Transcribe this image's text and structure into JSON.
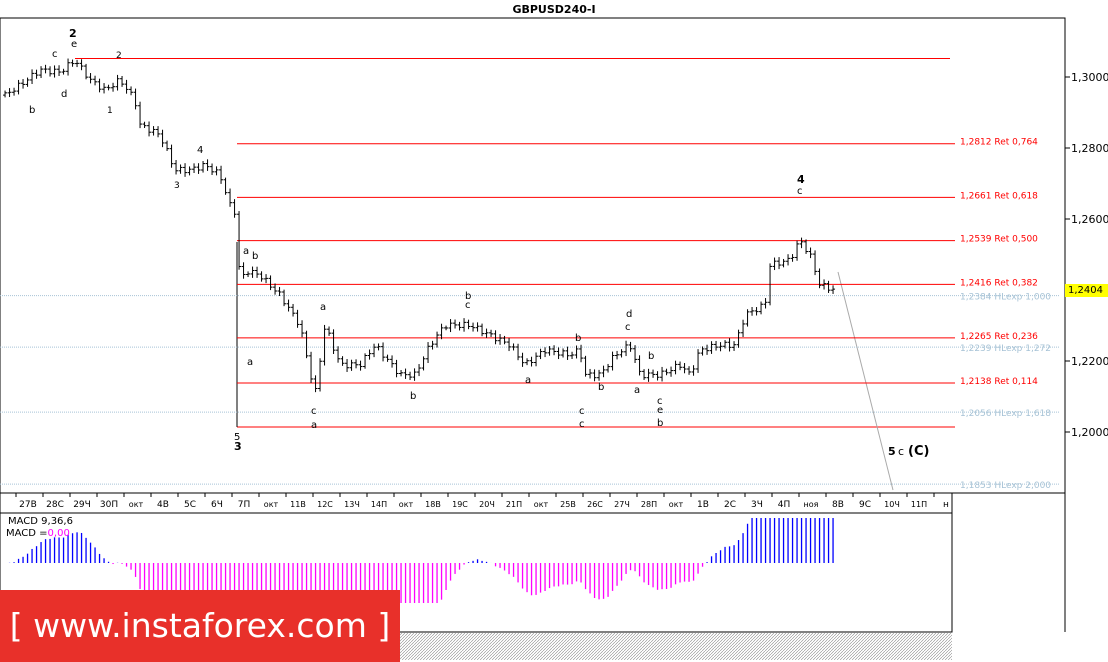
{
  "title": "GBPUSD240-I",
  "current_price": "1,2404",
  "logo_text": "[ www.instaforex.com ]",
  "macd": {
    "label": "MACD 9,36,6",
    "value_prefix": "MACD =",
    "value": "0,00"
  },
  "colors": {
    "ret": "#ff0000",
    "hlexp": "#a7c3d6",
    "current": "#ffff00",
    "macd_pos": "#0000ff",
    "macd_neg": "#ff00ff",
    "logo": "#e8302a"
  },
  "chart_data": {
    "type": "candlestick",
    "title": "GBPUSD240-I",
    "y_ticks": [
      "1,3000",
      "1,2800",
      "1,2600",
      "1,2200",
      "1,2000"
    ],
    "y_tick_values": [
      1.3,
      1.28,
      1.26,
      1.22,
      1.2
    ],
    "ylim": [
      1.1825,
      1.3165
    ],
    "x_ticks": [
      "27В",
      "28С",
      "29Ч",
      "30П",
      "окт",
      "4В",
      "5С",
      "6Ч",
      "7П",
      "окт",
      "11В",
      "12С",
      "13Ч",
      "14П",
      "окт",
      "18В",
      "19С",
      "20Ч",
      "21П",
      "окт",
      "25В",
      "26С",
      "27Ч",
      "28П",
      "окт",
      "1В",
      "2С",
      "3Ч",
      "4П",
      "ноя",
      "8В",
      "9С",
      "10Ч",
      "11П",
      "н"
    ],
    "price_path": [
      [
        -0.85,
        1.2949
      ],
      [
        -0.3,
        1.2977
      ],
      [
        0.44,
        1.302
      ],
      [
        1.19,
        1.3014
      ],
      [
        1.74,
        1.3048
      ],
      [
        2.3,
        1.2992
      ],
      [
        2.85,
        1.2963
      ],
      [
        3.41,
        1.2992
      ],
      [
        3.96,
        1.2935
      ],
      [
        4.15,
        1.2865
      ],
      [
        4.89,
        1.2837
      ],
      [
        5.44,
        1.2738
      ],
      [
        6,
        1.2738
      ],
      [
        6.56,
        1.2752
      ],
      [
        7.11,
        1.2724
      ],
      [
        7.48,
        1.2639
      ],
      [
        7.74,
        1.2611
      ],
      [
        7.85,
        1.24
      ],
      [
        8.04,
        1.2456
      ],
      [
        8.59,
        1.2442
      ],
      [
        9.33,
        1.2386
      ],
      [
        10.07,
        1.2301
      ],
      [
        10.63,
        1.2104
      ],
      [
        11,
        1.2301
      ],
      [
        11.56,
        1.2189
      ],
      [
        12.3,
        1.2189
      ],
      [
        12.85,
        1.2245
      ],
      [
        13.78,
        1.2161
      ],
      [
        14.33,
        1.2161
      ],
      [
        14.89,
        1.2245
      ],
      [
        15.44,
        1.2301
      ],
      [
        16.37,
        1.2301
      ],
      [
        17.11,
        1.2273
      ],
      [
        17.85,
        1.2245
      ],
      [
        18.41,
        1.2189
      ],
      [
        19.15,
        1.2231
      ],
      [
        20.07,
        1.2217
      ],
      [
        20.44,
        1.2231
      ],
      [
        20.63,
        1.2161
      ],
      [
        21.19,
        1.2161
      ],
      [
        21.74,
        1.2217
      ],
      [
        22.3,
        1.2245
      ],
      [
        22.67,
        1.2161
      ],
      [
        23.41,
        1.2161
      ],
      [
        24.15,
        1.2189
      ],
      [
        24.52,
        1.2161
      ],
      [
        24.89,
        1.2231
      ],
      [
        25.63,
        1.2245
      ],
      [
        26.19,
        1.2245
      ],
      [
        26.56,
        1.233
      ],
      [
        27.3,
        1.2358
      ],
      [
        27.48,
        1.247
      ],
      [
        28.22,
        1.2485
      ],
      [
        28.59,
        1.2541
      ],
      [
        28.96,
        1.2499
      ],
      [
        29.33,
        1.2414
      ],
      [
        29.89,
        1.24
      ]
    ],
    "levels": [
      {
        "label": "1,2812 Ret 0,764",
        "value": 1.2812,
        "type": "ret"
      },
      {
        "label": "1,2661 Ret 0,618",
        "value": 1.2661,
        "type": "ret"
      },
      {
        "label": "1,2539 Ret 0,500",
        "value": 1.2539,
        "type": "ret"
      },
      {
        "label": "1,2416 Ret 0,382",
        "value": 1.2416,
        "type": "ret"
      },
      {
        "label": "1,2384 HLexp 1,000",
        "value": 1.2384,
        "type": "hlexp"
      },
      {
        "label": "1,2265 Ret 0,236",
        "value": 1.2265,
        "type": "ret"
      },
      {
        "label": "1,2239 HLexp 1,272",
        "value": 1.2239,
        "type": "hlexp"
      },
      {
        "label": "1,2138 Ret 0,114",
        "value": 1.2138,
        "type": "ret"
      },
      {
        "label": "1,2056 HLexp 1,618",
        "value": 1.2056,
        "type": "hlexp"
      },
      {
        "label": "1,1853 HLexp 2,000",
        "value": 1.1853,
        "type": "hlexp"
      }
    ],
    "wave_labels": [
      {
        "text": "2",
        "color": "#000"
      },
      {
        "text": "e",
        "color": "#0000ff"
      },
      {
        "text": "c",
        "color": "#0000ff"
      },
      {
        "text": "d",
        "color": "#0000ff"
      },
      {
        "text": "b",
        "color": "#0000ff"
      },
      {
        "text": "2",
        "color": "#000"
      },
      {
        "text": "1",
        "color": "#000"
      },
      {
        "text": "4",
        "color": "#000"
      },
      {
        "text": "3",
        "color": "#000"
      },
      {
        "text": "a",
        "color": "#0000ff"
      },
      {
        "text": "b",
        "color": "#000"
      },
      {
        "text": "a",
        "color": "#000"
      },
      {
        "text": "5",
        "color": "#000"
      },
      {
        "text": "3",
        "color": "#000"
      },
      {
        "text": "a",
        "color": "#000"
      },
      {
        "text": "c",
        "color": "#000"
      },
      {
        "text": "a",
        "color": "#a00000"
      },
      {
        "text": "b",
        "color": "#000"
      },
      {
        "text": "b",
        "color": "#000"
      },
      {
        "text": "c",
        "color": "#000"
      },
      {
        "text": "a",
        "color": "#000"
      },
      {
        "text": "b",
        "color": "#000"
      },
      {
        "text": "c",
        "color": "#000"
      },
      {
        "text": "c",
        "color": "#a00000"
      },
      {
        "text": "b",
        "color": "#000"
      },
      {
        "text": "d",
        "color": "#a00000"
      },
      {
        "text": "c",
        "color": "#000"
      },
      {
        "text": "b",
        "color": "#000"
      },
      {
        "text": "a",
        "color": "#000"
      },
      {
        "text": "c",
        "color": "#000"
      },
      {
        "text": "e",
        "color": "#a00000"
      },
      {
        "text": "b",
        "color": "#0000ff"
      },
      {
        "text": "4",
        "color": "#000"
      },
      {
        "text": "c",
        "color": "#000"
      },
      {
        "text": "5",
        "color": "#000"
      },
      {
        "text": "c",
        "color": "#0000ff"
      },
      {
        "text": "(C)",
        "color": "#0000ff"
      }
    ]
  }
}
